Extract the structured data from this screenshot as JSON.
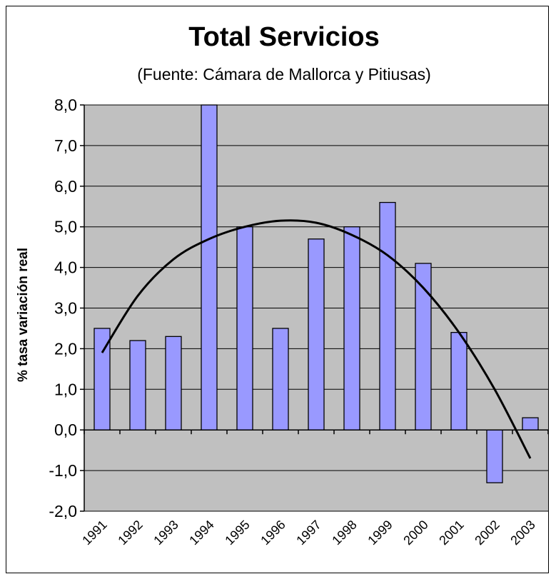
{
  "chart_data": {
    "type": "bar",
    "title": "Total Servicios",
    "subtitle": "(Fuente: Cámara de Mallorca y Pitiusas)",
    "xlabel": "",
    "ylabel": "% tasa variación real",
    "ylim": [
      -2.0,
      8.0
    ],
    "y_ticks": [
      "8,0",
      "7,0",
      "6,0",
      "5,0",
      "4,0",
      "3,0",
      "2,0",
      "1,0",
      "0,0",
      "-1,0",
      "-2,0"
    ],
    "categories": [
      "1991",
      "1992",
      "1993",
      "1994",
      "1995",
      "1996",
      "1997",
      "1998",
      "1999",
      "2000",
      "2001",
      "2002",
      "2003"
    ],
    "values": [
      2.5,
      2.2,
      2.3,
      8.0,
      5.0,
      2.5,
      4.7,
      5.0,
      5.6,
      4.1,
      2.4,
      -1.3,
      0.3
    ],
    "trendline": {
      "type": "polynomial",
      "values": [
        1.9,
        3.3,
        4.2,
        4.7,
        5.0,
        5.15,
        5.1,
        4.8,
        4.3,
        3.5,
        2.4,
        1.0,
        -0.7
      ]
    },
    "grid": true,
    "legend": "none",
    "colors": {
      "bar_fill": "#9999ff",
      "bar_stroke": "#000000",
      "plot_bg": "#c0c0c0",
      "trend": "#000000"
    }
  }
}
